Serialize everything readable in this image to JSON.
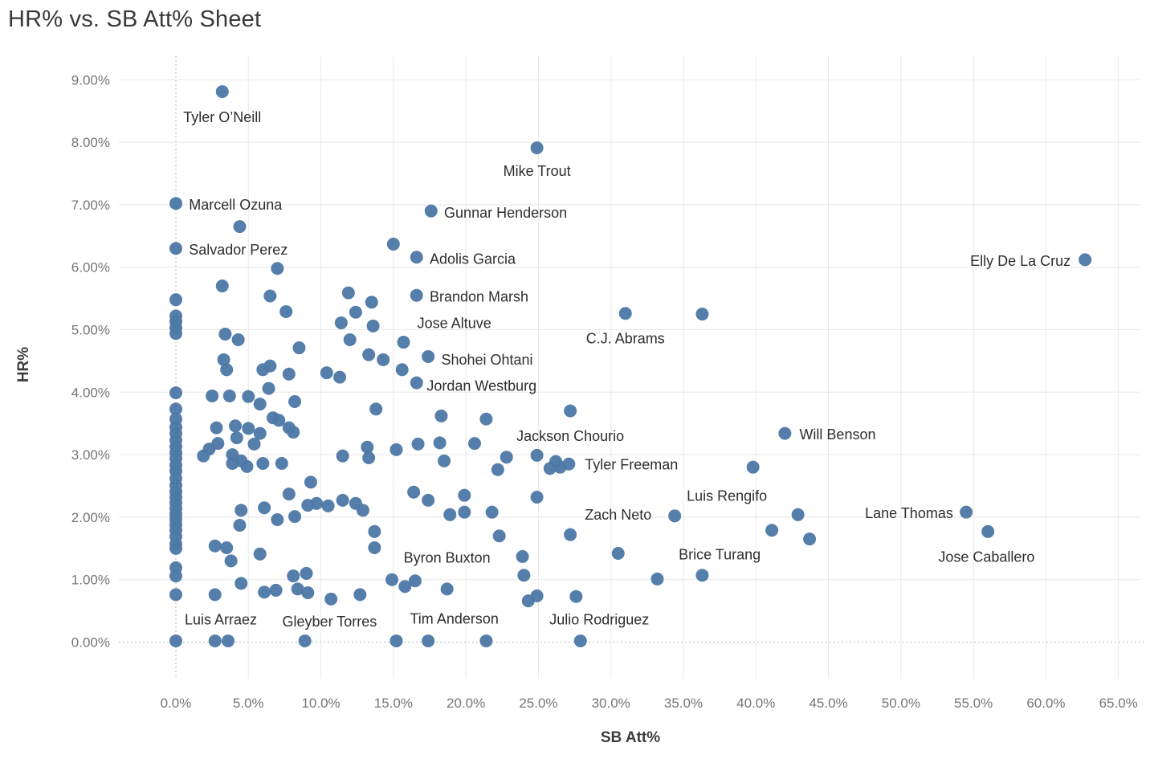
{
  "chart_data": {
    "type": "scatter",
    "title": "HR% vs. SB Att% Sheet",
    "xlabel": "SB Att%",
    "ylabel": "HR%",
    "x_axis": {
      "min": 0,
      "max": 65,
      "ticks": [
        {
          "value": 0,
          "label": "0.0%"
        },
        {
          "value": 5,
          "label": "5.0%"
        },
        {
          "value": 10,
          "label": "10.0%"
        },
        {
          "value": 15,
          "label": "15.0%"
        },
        {
          "value": 20,
          "label": "20.0%"
        },
        {
          "value": 25,
          "label": "25.0%"
        },
        {
          "value": 30,
          "label": "30.0%"
        },
        {
          "value": 35,
          "label": "35.0%"
        },
        {
          "value": 40,
          "label": "40.0%"
        },
        {
          "value": 45,
          "label": "45.0%"
        },
        {
          "value": 50,
          "label": "50.0%"
        },
        {
          "value": 55,
          "label": "55.0%"
        },
        {
          "value": 60,
          "label": "60.0%"
        },
        {
          "value": 65,
          "label": "65.0%"
        }
      ]
    },
    "y_axis": {
      "min": 0,
      "max": 9,
      "ticks": [
        {
          "value": 0,
          "label": "0.00%"
        },
        {
          "value": 1,
          "label": "1.00%"
        },
        {
          "value": 2,
          "label": "2.00%"
        },
        {
          "value": 3,
          "label": "3.00%"
        },
        {
          "value": 4,
          "label": "4.00%"
        },
        {
          "value": 5,
          "label": "5.00%"
        },
        {
          "value": 6,
          "label": "6.00%"
        },
        {
          "value": 7,
          "label": "7.00%"
        },
        {
          "value": 8,
          "label": "8.00%"
        },
        {
          "value": 9,
          "label": "9.00%"
        }
      ]
    },
    "grid": true,
    "legend": false,
    "colors": {
      "point": "#4e79a7",
      "grid": "#e8e8e8",
      "zero_line": "#b9b9b9",
      "tick": "#767676",
      "annotation": "#2e2e2e",
      "title": "#3a3a3a",
      "axis_title": "#3c3c3c"
    },
    "points": [
      [
        3.2,
        8.81,
        "Tyler O’Neill"
      ],
      [
        24.9,
        7.91,
        "Mike Trout"
      ],
      [
        0,
        7.02,
        "Marcell Ozuna"
      ],
      [
        0,
        6.3,
        "Salvador Perez"
      ],
      [
        17.6,
        6.9,
        "Gunnar Henderson"
      ],
      [
        16.6,
        6.16,
        "Adolis Garcia"
      ],
      [
        62.7,
        6.12,
        "Elly De La Cruz"
      ],
      [
        16.6,
        5.55,
        "Brandon Marsh"
      ],
      [
        13.6,
        5.06,
        "Jose Altuve"
      ],
      [
        17.4,
        4.57,
        "Shohei Ohtani"
      ],
      [
        16.6,
        4.15,
        "Jordan Westburg"
      ],
      [
        31,
        5.26,
        "C.J. Abrams"
      ],
      [
        27.2,
        3.7,
        "Jackson Chourio"
      ],
      [
        42,
        3.34,
        "Will Benson"
      ],
      [
        27.1,
        2.85,
        "Tyler Freeman"
      ],
      [
        34.4,
        2.02,
        "Zach Neto"
      ],
      [
        39.8,
        2.8,
        "Luis Rengifo"
      ],
      [
        36.3,
        1.07,
        "Brice Turang"
      ],
      [
        54.5,
        2.08,
        "Lane Thomas"
      ],
      [
        56,
        1.77,
        "Jose Caballero"
      ],
      [
        23.9,
        1.37,
        "Byron Buxton"
      ],
      [
        2.7,
        0.02,
        "Luis Arraez"
      ],
      [
        8.9,
        0.02,
        "Gleyber Torres"
      ],
      [
        17.4,
        0.02,
        "Tim Anderson"
      ],
      [
        27.9,
        0.02,
        "Julio Rodriguez"
      ],
      [
        0,
        5.48
      ],
      [
        0,
        5.22
      ],
      [
        0,
        5.13
      ],
      [
        0,
        5.03
      ],
      [
        0,
        4.94
      ],
      [
        0,
        3.99
      ],
      [
        0,
        3.73
      ],
      [
        0,
        3.57
      ],
      [
        0,
        3.44
      ],
      [
        0,
        3.34
      ],
      [
        0,
        3.23
      ],
      [
        0,
        3.13
      ],
      [
        0,
        3.03
      ],
      [
        0,
        2.94
      ],
      [
        0,
        2.83
      ],
      [
        0,
        2.74
      ],
      [
        0,
        2.62
      ],
      [
        0,
        2.51
      ],
      [
        0,
        2.41
      ],
      [
        0,
        2.32
      ],
      [
        0,
        2.23
      ],
      [
        0,
        2.14
      ],
      [
        0,
        2.05
      ],
      [
        0,
        1.97
      ],
      [
        0,
        1.88
      ],
      [
        0,
        1.79
      ],
      [
        0,
        1.69
      ],
      [
        0,
        1.57
      ],
      [
        0,
        1.5
      ],
      [
        0,
        1.19
      ],
      [
        0,
        1.06
      ],
      [
        0,
        0.76
      ],
      [
        0,
        0.02
      ],
      [
        4.4,
        6.65
      ],
      [
        15,
        6.37
      ],
      [
        7,
        5.98
      ],
      [
        3.2,
        5.7
      ],
      [
        11.9,
        5.59
      ],
      [
        6.5,
        5.54
      ],
      [
        13.5,
        5.44
      ],
      [
        7.6,
        5.29
      ],
      [
        12.4,
        5.28
      ],
      [
        11.4,
        5.11
      ],
      [
        12,
        4.84
      ],
      [
        3.4,
        4.93
      ],
      [
        4.3,
        4.84
      ],
      [
        15.7,
        4.8
      ],
      [
        8.5,
        4.71
      ],
      [
        13.3,
        4.6
      ],
      [
        14.3,
        4.52
      ],
      [
        3.3,
        4.52
      ],
      [
        3.5,
        4.36
      ],
      [
        6,
        4.36
      ],
      [
        6.5,
        4.42
      ],
      [
        7.8,
        4.29
      ],
      [
        10.4,
        4.31
      ],
      [
        11.3,
        4.24
      ],
      [
        15.6,
        4.36
      ],
      [
        2.5,
        3.94
      ],
      [
        3.7,
        3.94
      ],
      [
        5,
        3.93
      ],
      [
        6.4,
        4.06
      ],
      [
        5.8,
        3.81
      ],
      [
        8.2,
        3.85
      ],
      [
        6.7,
        3.59
      ],
      [
        7.1,
        3.55
      ],
      [
        7.8,
        3.43
      ],
      [
        13.8,
        3.73
      ],
      [
        18.3,
        3.62
      ],
      [
        21.4,
        3.57
      ],
      [
        36.3,
        5.25
      ],
      [
        2.8,
        3.43
      ],
      [
        4.1,
        3.46
      ],
      [
        5,
        3.42
      ],
      [
        5.8,
        3.34
      ],
      [
        4.2,
        3.27
      ],
      [
        5.4,
        3.17
      ],
      [
        2.9,
        3.18
      ],
      [
        2.3,
        3.09
      ],
      [
        1.9,
        2.98
      ],
      [
        3.9,
        3
      ],
      [
        4.5,
        2.9
      ],
      [
        4.9,
        2.81
      ],
      [
        3.9,
        2.86
      ],
      [
        6,
        2.86
      ],
      [
        7.3,
        2.86
      ],
      [
        8.1,
        3.36
      ],
      [
        11.5,
        2.98
      ],
      [
        13.2,
        3.12
      ],
      [
        13.3,
        2.95
      ],
      [
        15.2,
        3.08
      ],
      [
        16.7,
        3.17
      ],
      [
        18.2,
        3.19
      ],
      [
        20.6,
        3.18
      ],
      [
        18.5,
        2.9
      ],
      [
        22.8,
        2.96
      ],
      [
        24.9,
        2.99
      ],
      [
        26.2,
        2.89
      ],
      [
        25.8,
        2.78
      ],
      [
        26.5,
        2.8
      ],
      [
        22.2,
        2.76
      ],
      [
        9.3,
        2.56
      ],
      [
        7.8,
        2.37
      ],
      [
        19.9,
        2.35
      ],
      [
        24.9,
        2.32
      ],
      [
        16.4,
        2.4
      ],
      [
        17.4,
        2.27
      ],
      [
        4.5,
        2.11
      ],
      [
        6.1,
        2.15
      ],
      [
        7,
        1.96
      ],
      [
        8.2,
        2.01
      ],
      [
        9.1,
        2.19
      ],
      [
        9.7,
        2.22
      ],
      [
        10.5,
        2.18
      ],
      [
        11.5,
        2.27
      ],
      [
        12.4,
        2.22
      ],
      [
        12.9,
        2.11
      ],
      [
        18.9,
        2.04
      ],
      [
        19.9,
        2.08
      ],
      [
        21.8,
        2.08
      ],
      [
        42.9,
        2.04
      ],
      [
        41.1,
        1.79
      ],
      [
        43.7,
        1.65
      ],
      [
        13.7,
        1.77
      ],
      [
        13.7,
        1.51
      ],
      [
        4.4,
        1.87
      ],
      [
        2.7,
        1.54
      ],
      [
        3.5,
        1.51
      ],
      [
        3.8,
        1.3
      ],
      [
        5.8,
        1.41
      ],
      [
        22.3,
        1.7
      ],
      [
        27.2,
        1.72
      ],
      [
        24,
        1.07
      ],
      [
        30.5,
        1.42
      ],
      [
        33.2,
        1.01
      ],
      [
        8.1,
        1.06
      ],
      [
        9,
        1.1
      ],
      [
        4.5,
        0.94
      ],
      [
        2.7,
        0.76
      ],
      [
        6.1,
        0.8
      ],
      [
        6.9,
        0.83
      ],
      [
        8.4,
        0.85
      ],
      [
        9.1,
        0.79
      ],
      [
        10.7,
        0.69
      ],
      [
        12.7,
        0.76
      ],
      [
        14.9,
        1
      ],
      [
        15.8,
        0.89
      ],
      [
        16.5,
        0.98
      ],
      [
        18.7,
        0.85
      ],
      [
        24.3,
        0.66
      ],
      [
        24.9,
        0.74
      ],
      [
        27.6,
        0.73
      ],
      [
        3.6,
        0.02
      ],
      [
        15.2,
        0.02
      ],
      [
        21.4,
        0.02
      ]
    ],
    "annotations": [
      {
        "text": "Tyler O’Neill",
        "x": 3.2,
        "y": 8.4,
        "anchor": "middle"
      },
      {
        "text": "Mike Trout",
        "x": 24.9,
        "y": 7.54,
        "anchor": "middle"
      },
      {
        "text": "Marcell Ozuna",
        "x": 0.9,
        "y": 7.0,
        "anchor": "start"
      },
      {
        "text": "Salvador Perez",
        "x": 0.9,
        "y": 6.28,
        "anchor": "start"
      },
      {
        "text": "Gunnar Henderson",
        "x": 18.5,
        "y": 6.87,
        "anchor": "start"
      },
      {
        "text": "Adolis Garcia",
        "x": 17.5,
        "y": 6.13,
        "anchor": "start"
      },
      {
        "text": "Elly De La Cruz",
        "x": 61.7,
        "y": 6.1,
        "anchor": "end"
      },
      {
        "text": "Brandon Marsh",
        "x": 17.5,
        "y": 5.53,
        "anchor": "start"
      },
      {
        "text": "Jose Altuve",
        "x": 19.2,
        "y": 5.1,
        "anchor": "middle"
      },
      {
        "text": "Shohei Ohtani",
        "x": 18.3,
        "y": 4.52,
        "anchor": "start"
      },
      {
        "text": "Jordan Westburg",
        "x": 17.3,
        "y": 4.1,
        "anchor": "start"
      },
      {
        "text": "C.J. Abrams",
        "x": 31,
        "y": 4.86,
        "anchor": "middle"
      },
      {
        "text": "Jackson Chourio",
        "x": 27.2,
        "y": 3.3,
        "anchor": "middle"
      },
      {
        "text": "Will Benson",
        "x": 43,
        "y": 3.32,
        "anchor": "start"
      },
      {
        "text": "Tyler Freeman",
        "x": 28.2,
        "y": 2.84,
        "anchor": "start"
      },
      {
        "text": "Zach Neto",
        "x": 32.8,
        "y": 2.04,
        "anchor": "end"
      },
      {
        "text": "Luis Rengifo",
        "x": 38,
        "y": 2.34,
        "anchor": "middle"
      },
      {
        "text": "Brice Turang",
        "x": 37.5,
        "y": 1.4,
        "anchor": "middle"
      },
      {
        "text": "Lane Thomas",
        "x": 53.6,
        "y": 2.06,
        "anchor": "end"
      },
      {
        "text": "Jose Caballero",
        "x": 55.9,
        "y": 1.36,
        "anchor": "middle"
      },
      {
        "text": "Byron Buxton",
        "x": 18.7,
        "y": 1.35,
        "anchor": "middle"
      },
      {
        "text": "Luis Arraez",
        "x": 3.1,
        "y": 0.36,
        "anchor": "middle"
      },
      {
        "text": "Gleyber Torres",
        "x": 10.6,
        "y": 0.33,
        "anchor": "middle"
      },
      {
        "text": "Tim Anderson",
        "x": 19.2,
        "y": 0.37,
        "anchor": "middle"
      },
      {
        "text": "Julio Rodriguez",
        "x": 29.2,
        "y": 0.36,
        "anchor": "middle"
      }
    ]
  }
}
